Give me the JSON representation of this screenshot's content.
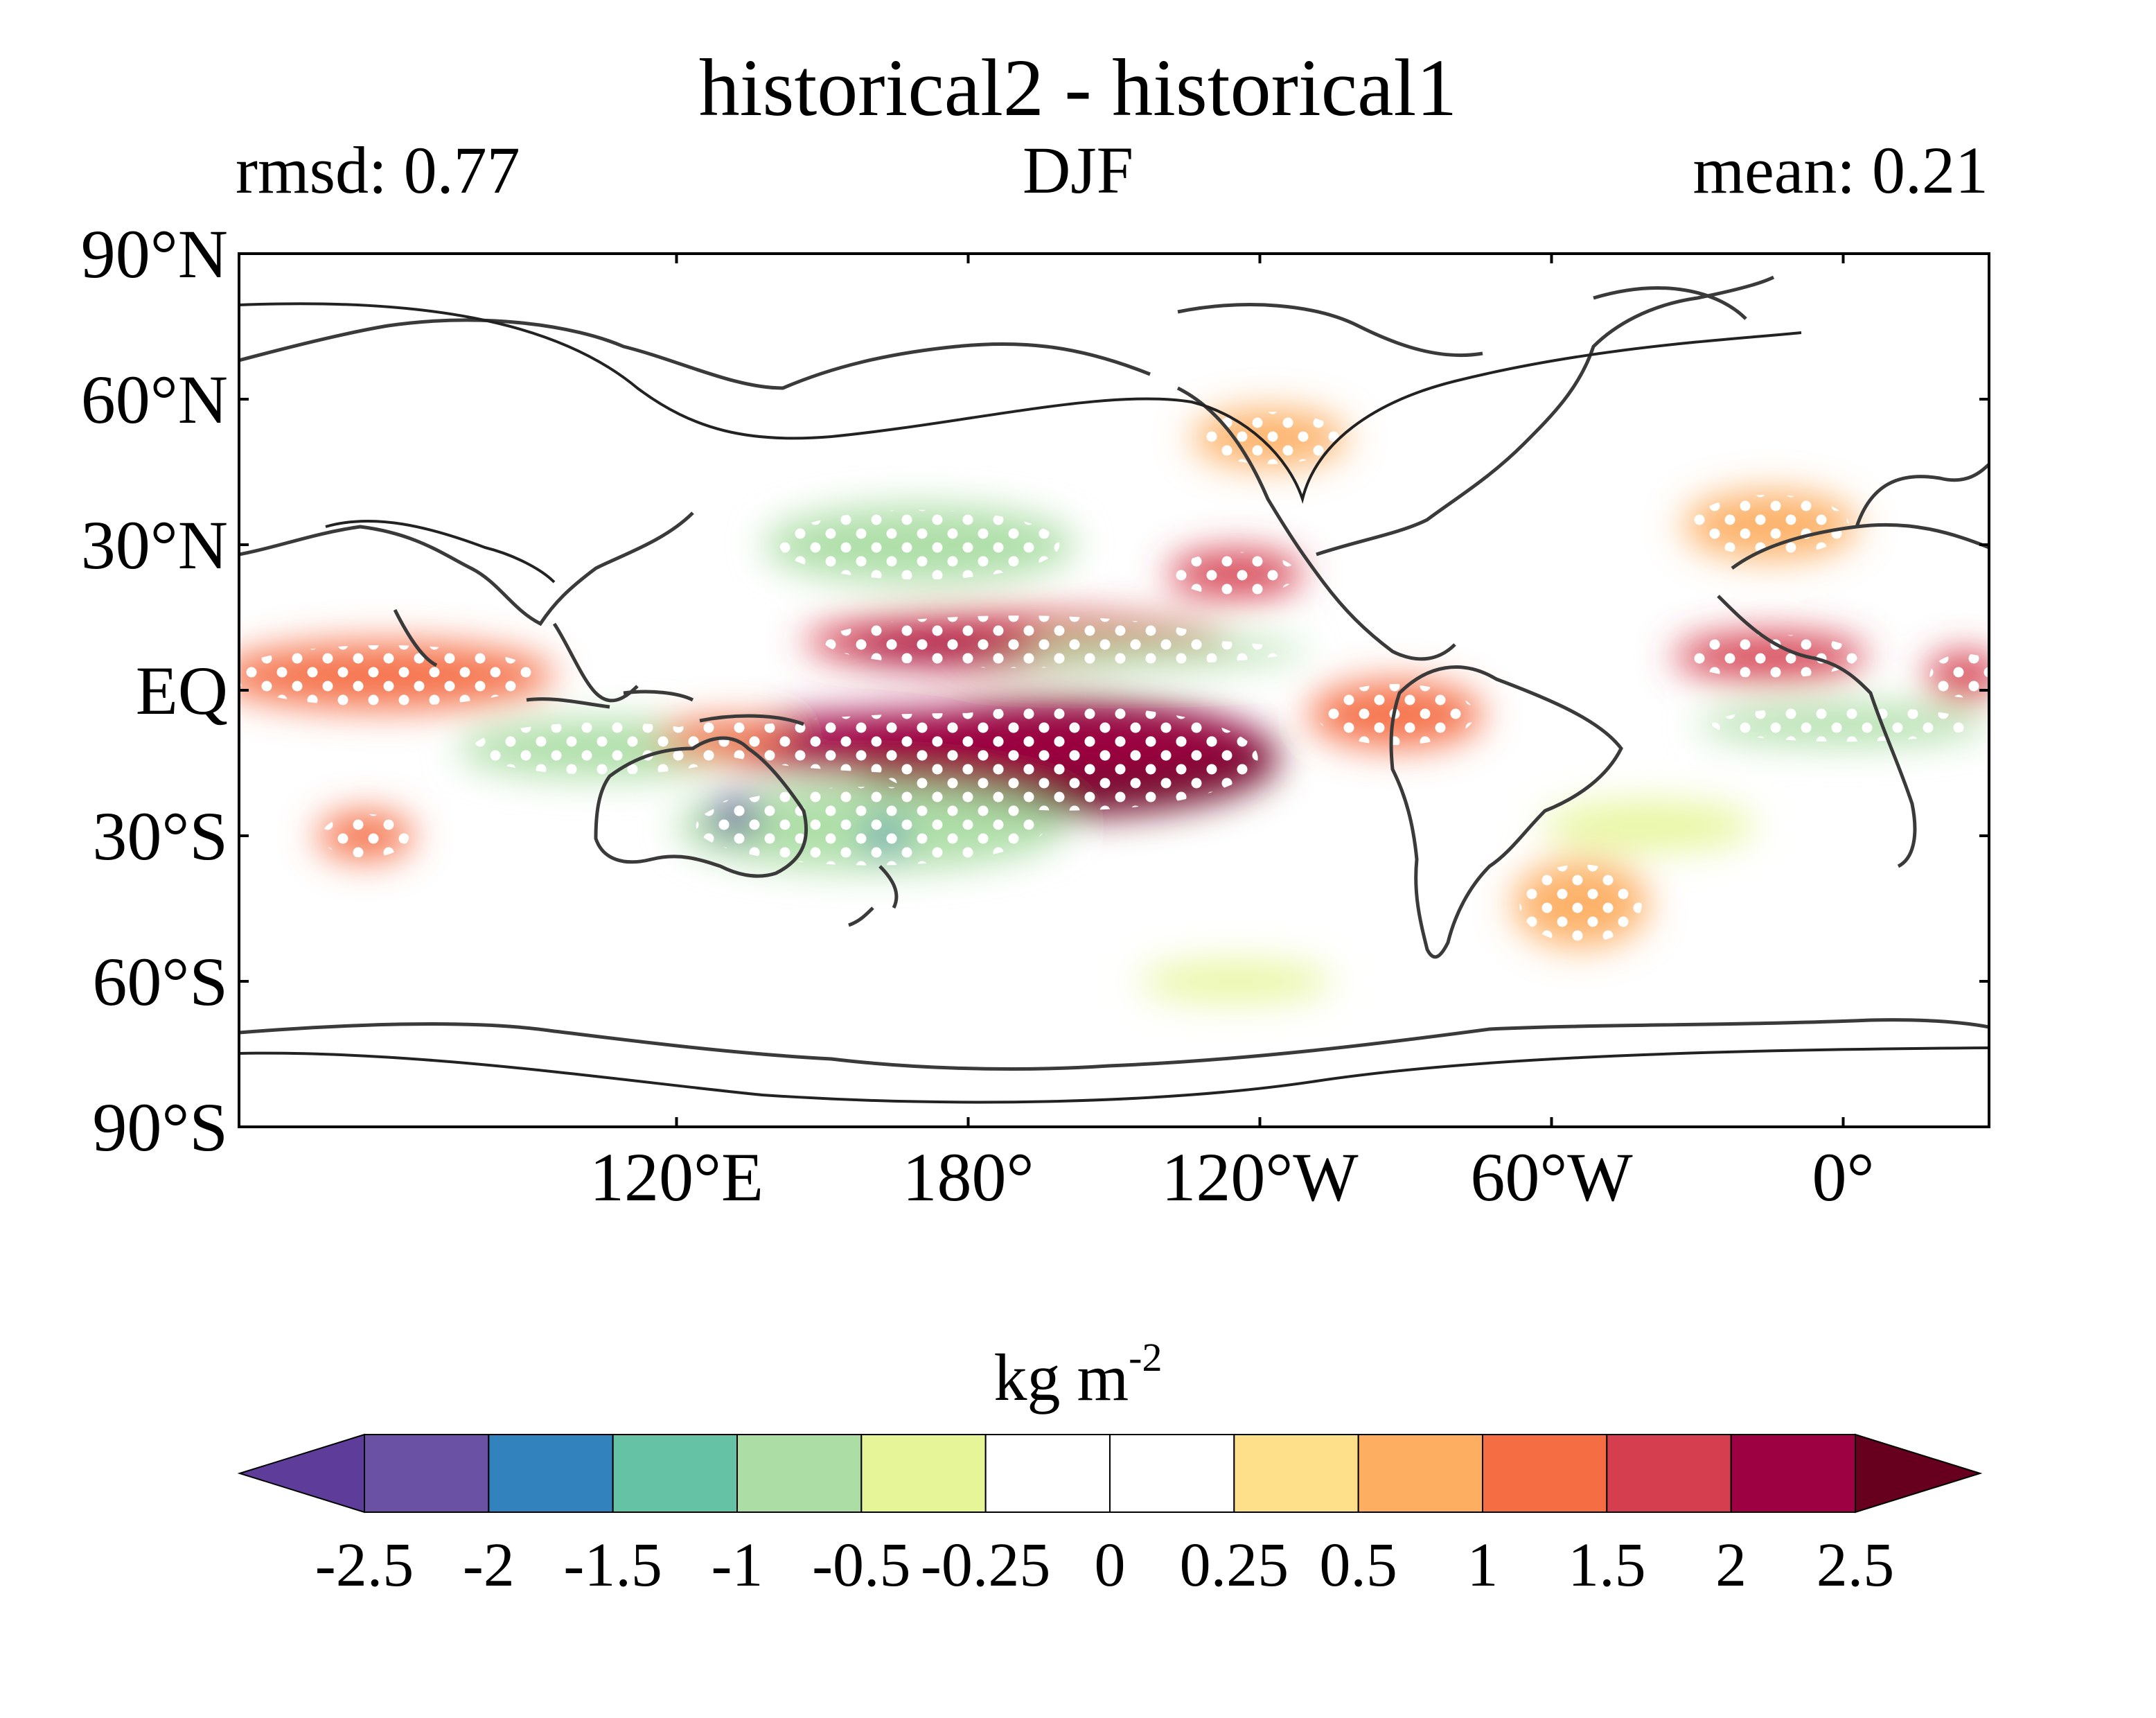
{
  "chart_data": {
    "type": "heatmap",
    "title": "historical2 - historical1",
    "subtitle_left": "rmsd: 0.77",
    "subtitle_center": "DJF",
    "subtitle_right": "mean: 0.21",
    "projection": "equirectangular, centered on 150°W, longitude 30°E → 390°E",
    "xlim": [
      30,
      390
    ],
    "ylim": [
      -90,
      90
    ],
    "x_ticks": [
      {
        "lon": 120,
        "label": "120°E"
      },
      {
        "lon": 180,
        "label": "180°"
      },
      {
        "lon": 240,
        "label": "120°W"
      },
      {
        "lon": 300,
        "label": "60°W"
      },
      {
        "lon": 360,
        "label": "0°"
      }
    ],
    "y_ticks": [
      {
        "lat": 90,
        "label": "90°N"
      },
      {
        "lat": 60,
        "label": "60°N"
      },
      {
        "lat": 30,
        "label": "30°N"
      },
      {
        "lat": 0,
        "label": "EQ"
      },
      {
        "lat": -30,
        "label": "30°S"
      },
      {
        "lat": -60,
        "label": "60°S"
      },
      {
        "lat": -90,
        "label": "90°S"
      }
    ],
    "colorbar": {
      "units_label": "kg m",
      "units_exponent": "-2",
      "levels": [
        -2.5,
        -2,
        -1.5,
        -1,
        -0.5,
        -0.25,
        0,
        0.25,
        0.5,
        1,
        1.5,
        2,
        2.5
      ],
      "tick_labels": [
        "-2.5",
        "-2",
        "-1.5",
        "-1",
        "-0.5",
        "-0.25",
        "0",
        "0.25",
        "0.5",
        "1",
        "1.5",
        "2",
        "2.5"
      ],
      "colors": [
        "#5e3c99",
        "#6a51a3",
        "#3182bd",
        "#66c2a5",
        "#abdda4",
        "#e6f598",
        "#ffffff",
        "#ffffff",
        "#fee08b",
        "#fdae61",
        "#f46d43",
        "#d53e4f",
        "#9e0142",
        "#67001f"
      ],
      "extend": "both"
    },
    "anomaly_regions": [
      {
        "lon": 200,
        "lat": -14,
        "rlon": 44,
        "rlat": 12,
        "value": 2.7
      },
      {
        "lon": 180,
        "lat": -11,
        "rlon": 60,
        "rlat": 7,
        "value": 2.0
      },
      {
        "lon": 190,
        "lat": 10,
        "rlon": 44,
        "rlat": 6,
        "value": 1.8
      },
      {
        "lon": 175,
        "lat": 9,
        "rlon": 20,
        "rlat": 3,
        "value": 2.3
      },
      {
        "lon": 235,
        "lat": 24,
        "rlon": 14,
        "rlat": 5,
        "value": 1.7
      },
      {
        "lon": 345,
        "lat": 7,
        "rlon": 20,
        "rlat": 5,
        "value": 1.7
      },
      {
        "lon": 385,
        "lat": 3,
        "rlon": 8,
        "rlat": 5,
        "value": 1.6
      },
      {
        "lon": 56,
        "lat": -30,
        "rlon": 10,
        "rlat": 5,
        "value": 1.3
      },
      {
        "lon": 130,
        "lat": -10,
        "rlon": 14,
        "rlat": 4,
        "value": 1.2
      },
      {
        "lon": 268,
        "lat": -5,
        "rlon": 18,
        "rlat": 7,
        "value": 1.2
      },
      {
        "lon": 242,
        "lat": 52,
        "rlon": 16,
        "rlat": 6,
        "value": 0.8
      },
      {
        "lon": 306,
        "lat": -44,
        "rlon": 14,
        "rlat": 9,
        "value": 0.8
      },
      {
        "lon": 60,
        "lat": 3,
        "rlon": 35,
        "rlat": 7,
        "value": 1.0
      },
      {
        "lon": 345,
        "lat": 34,
        "rlon": 18,
        "rlat": 7,
        "value": 0.8
      },
      {
        "lon": 132,
        "lat": -26,
        "rlon": 5,
        "rlat": 4,
        "value": -2.4
      },
      {
        "lon": 163,
        "lat": -30,
        "rlon": 4,
        "rlat": 3,
        "value": -1.8
      },
      {
        "lon": 170,
        "lat": 30,
        "rlon": 32,
        "rlat": 8,
        "value": -0.8
      },
      {
        "lon": 105,
        "lat": -12,
        "rlon": 30,
        "rlat": 6,
        "value": -0.9
      },
      {
        "lon": 210,
        "lat": 8,
        "rlon": 40,
        "rlat": 3,
        "value": -1.0
      },
      {
        "lon": 360,
        "lat": -7,
        "rlon": 30,
        "rlat": 4,
        "value": -0.8
      },
      {
        "lon": 160,
        "lat": -28,
        "rlon": 40,
        "rlat": 9,
        "value": -0.7
      },
      {
        "lon": 320,
        "lat": -28,
        "rlon": 22,
        "rlat": 5,
        "value": -0.5
      },
      {
        "lon": 235,
        "lat": -60,
        "rlon": 20,
        "rlat": 4,
        "value": -0.3
      }
    ],
    "stippling": "white dots mark statistically significant differences",
    "grid": false
  }
}
